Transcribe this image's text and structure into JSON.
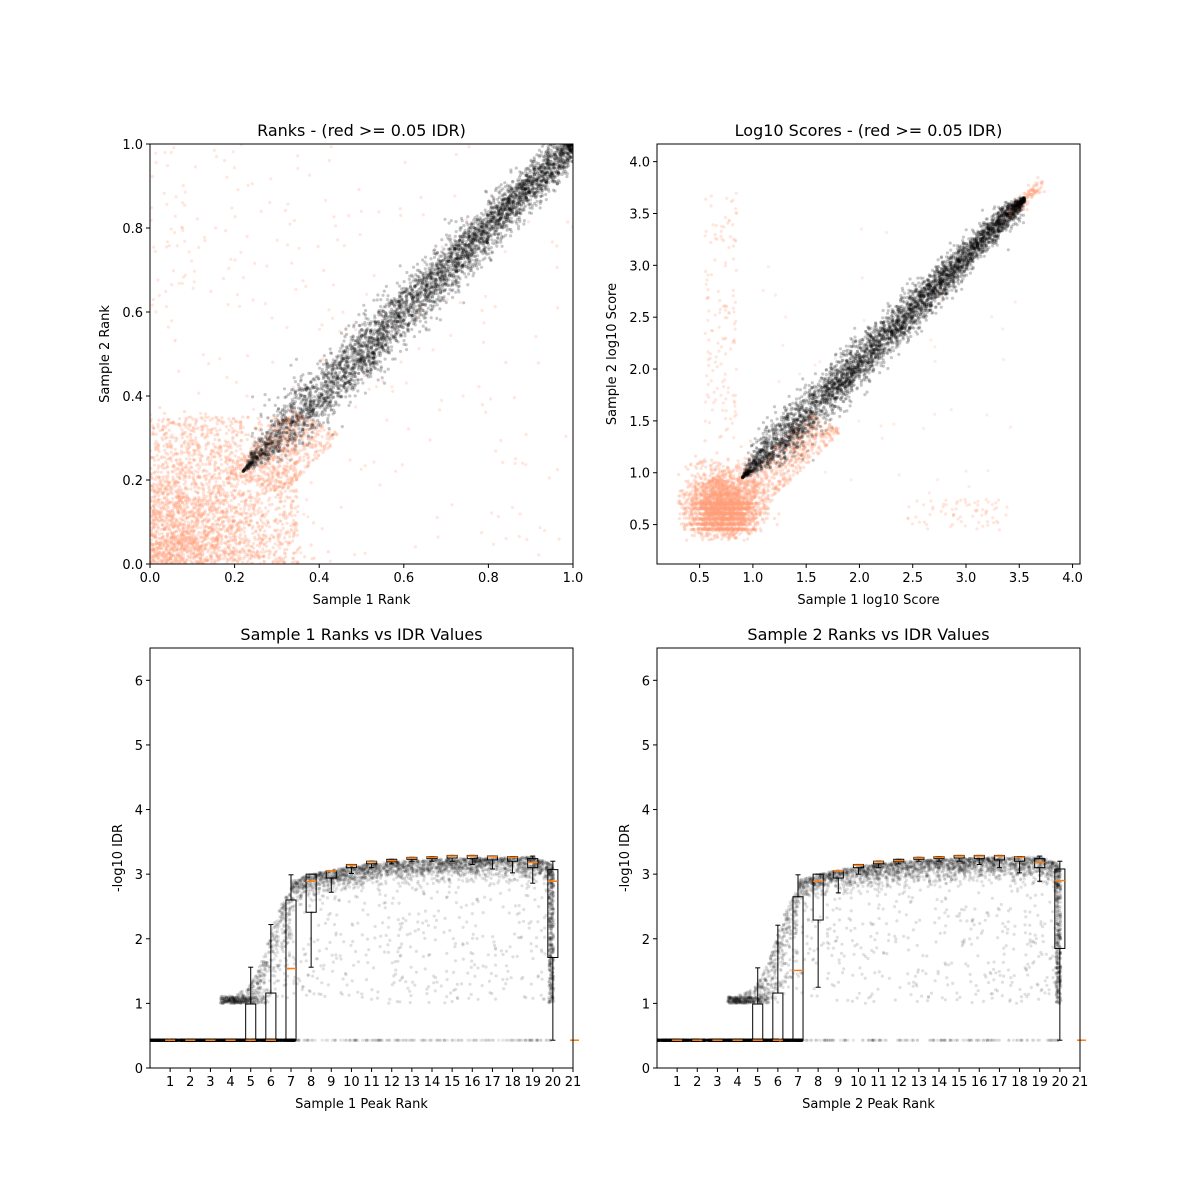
{
  "chart_data": [
    {
      "type": "scatter",
      "title": "Ranks - (red >= 0.05 IDR)",
      "xlabel": "Sample 1 Rank",
      "ylabel": "Sample 2 Rank",
      "xlim": [
        0,
        1
      ],
      "ylim": [
        0,
        1
      ],
      "xticks": [
        0.0,
        0.2,
        0.4,
        0.6,
        0.8,
        1.0
      ],
      "xtick_labels": [
        "0.0",
        "0.2",
        "0.4",
        "0.6",
        "0.8",
        "1.0"
      ],
      "yticks": [
        0.0,
        0.2,
        0.4,
        0.6,
        0.8,
        1.0
      ],
      "ytick_labels": [
        "0.0",
        "0.2",
        "0.4",
        "0.6",
        "0.8",
        "1.0"
      ],
      "grid": false,
      "colors": {
        "pass": "#000000",
        "fail": "#ffa07a"
      },
      "distribution": {
        "pass_diagonal_from": [
          0.22,
          0.22
        ],
        "pass_diagonal_to": [
          1.0,
          1.0
        ],
        "fail_cluster_range": [
          0.0,
          0.35
        ]
      }
    },
    {
      "type": "scatter",
      "title": "Log10 Scores - (red >= 0.05 IDR)",
      "xlabel": "Sample 1 log10 Score",
      "ylabel": "Sample 2 log10 Score",
      "xlim": [
        0.1,
        4.07
      ],
      "ylim": [
        0.12,
        4.17
      ],
      "xticks": [
        0.5,
        1.0,
        1.5,
        2.0,
        2.5,
        3.0,
        3.5,
        4.0
      ],
      "xtick_labels": [
        "0.5",
        "1.0",
        "1.5",
        "2.0",
        "2.5",
        "3.0",
        "3.5",
        "4.0"
      ],
      "yticks": [
        0.5,
        1.0,
        1.5,
        2.0,
        2.5,
        3.0,
        3.5,
        4.0
      ],
      "ytick_labels": [
        "0.5",
        "1.0",
        "1.5",
        "2.0",
        "2.5",
        "3.0",
        "3.5",
        "4.0"
      ],
      "grid": false,
      "colors": {
        "pass": "#000000",
        "fail": "#ffa07a"
      },
      "distribution": {
        "pass_diagonal_from": [
          0.9,
          0.95
        ],
        "pass_diagonal_to": [
          3.55,
          3.65
        ],
        "fail_cluster_center": [
          0.7,
          0.7
        ]
      }
    },
    {
      "type": "boxplot",
      "title": "Sample 1 Ranks vs IDR Values",
      "xlabel": "Sample 1 Peak Rank",
      "ylabel": "-log10 IDR",
      "xlim": [
        0,
        21
      ],
      "ylim": [
        0,
        6.5
      ],
      "xticks": [
        1,
        2,
        3,
        4,
        5,
        6,
        7,
        8,
        9,
        10,
        11,
        12,
        13,
        14,
        15,
        16,
        17,
        18,
        19,
        20,
        21
      ],
      "xtick_labels": [
        "1",
        "2",
        "3",
        "4",
        "5",
        "6",
        "7",
        "8",
        "9",
        "10",
        "11",
        "12",
        "13",
        "14",
        "15",
        "16",
        "17",
        "18",
        "19",
        "20",
        "21"
      ],
      "yticks": [
        0,
        1,
        2,
        3,
        4,
        5,
        6
      ],
      "ytick_labels": [
        "0",
        "1",
        "2",
        "3",
        "4",
        "5",
        "6"
      ],
      "grid": false,
      "colors": {
        "points": "#000000",
        "median": "#ff7f0e",
        "box": "#000000"
      },
      "boxes": [
        {
          "pos": 1,
          "low": 0.43,
          "q1": 0.43,
          "med": 0.43,
          "q3": 0.43,
          "high": 0.43
        },
        {
          "pos": 2,
          "low": 0.43,
          "q1": 0.43,
          "med": 0.43,
          "q3": 0.43,
          "high": 0.43
        },
        {
          "pos": 3,
          "low": 0.43,
          "q1": 0.43,
          "med": 0.43,
          "q3": 0.43,
          "high": 0.43
        },
        {
          "pos": 4,
          "low": 0.43,
          "q1": 0.43,
          "med": 0.43,
          "q3": 0.43,
          "high": 0.43
        },
        {
          "pos": 5,
          "low": 0.43,
          "q1": 0.43,
          "med": 0.43,
          "q3": 0.99,
          "high": 1.56
        },
        {
          "pos": 6,
          "low": 0.43,
          "q1": 0.43,
          "med": 0.43,
          "q3": 1.16,
          "high": 2.22
        },
        {
          "pos": 7,
          "low": 0.43,
          "q1": 0.43,
          "med": 1.54,
          "q3": 2.6,
          "high": 2.99
        },
        {
          "pos": 8,
          "low": 1.56,
          "q1": 2.41,
          "med": 2.89,
          "q3": 3.0,
          "high": 3.0
        },
        {
          "pos": 9,
          "low": 2.72,
          "q1": 2.94,
          "med": 3.05,
          "q3": 3.05,
          "high": 3.05
        },
        {
          "pos": 10,
          "low": 3.01,
          "q1": 3.1,
          "med": 3.14,
          "q3": 3.15,
          "high": 3.15
        },
        {
          "pos": 11,
          "low": 3.1,
          "q1": 3.16,
          "med": 3.19,
          "q3": 3.2,
          "high": 3.2
        },
        {
          "pos": 12,
          "low": 3.16,
          "q1": 3.19,
          "med": 3.21,
          "q3": 3.23,
          "high": 3.23
        },
        {
          "pos": 13,
          "low": 3.2,
          "q1": 3.23,
          "med": 3.25,
          "q3": 3.26,
          "high": 3.26
        },
        {
          "pos": 14,
          "low": 3.2,
          "q1": 3.24,
          "med": 3.26,
          "q3": 3.27,
          "high": 3.27
        },
        {
          "pos": 15,
          "low": 3.2,
          "q1": 3.25,
          "med": 3.28,
          "q3": 3.29,
          "high": 3.29
        },
        {
          "pos": 16,
          "low": 3.15,
          "q1": 3.24,
          "med": 3.28,
          "q3": 3.29,
          "high": 3.29
        },
        {
          "pos": 17,
          "low": 3.08,
          "q1": 3.22,
          "med": 3.27,
          "q3": 3.28,
          "high": 3.28
        },
        {
          "pos": 18,
          "low": 3.02,
          "q1": 3.2,
          "med": 3.26,
          "q3": 3.27,
          "high": 3.27
        },
        {
          "pos": 19,
          "low": 2.86,
          "q1": 3.1,
          "med": 3.18,
          "q3": 3.24,
          "high": 3.28
        },
        {
          "pos": 20,
          "low": 0.43,
          "q1": 1.71,
          "med": 2.89,
          "q3": 3.07,
          "high": 3.2
        },
        {
          "pos": 21,
          "low": 0.43,
          "q1": 0.43,
          "med": 0.43,
          "q3": 0.43,
          "high": 0.43
        }
      ]
    },
    {
      "type": "boxplot",
      "title": "Sample 2 Ranks vs IDR Values",
      "xlabel": "Sample 2 Peak Rank",
      "ylabel": "-log10 IDR",
      "xlim": [
        0,
        21
      ],
      "ylim": [
        0,
        6.5
      ],
      "xticks": [
        1,
        2,
        3,
        4,
        5,
        6,
        7,
        8,
        9,
        10,
        11,
        12,
        13,
        14,
        15,
        16,
        17,
        18,
        19,
        20,
        21
      ],
      "xtick_labels": [
        "1",
        "2",
        "3",
        "4",
        "5",
        "6",
        "7",
        "8",
        "9",
        "10",
        "11",
        "12",
        "13",
        "14",
        "15",
        "16",
        "17",
        "18",
        "19",
        "20",
        "21"
      ],
      "yticks": [
        0,
        1,
        2,
        3,
        4,
        5,
        6
      ],
      "ytick_labels": [
        "0",
        "1",
        "2",
        "3",
        "4",
        "5",
        "6"
      ],
      "grid": false,
      "colors": {
        "points": "#000000",
        "median": "#ff7f0e",
        "box": "#000000"
      },
      "boxes": [
        {
          "pos": 1,
          "low": 0.43,
          "q1": 0.43,
          "med": 0.43,
          "q3": 0.43,
          "high": 0.43
        },
        {
          "pos": 2,
          "low": 0.43,
          "q1": 0.43,
          "med": 0.43,
          "q3": 0.43,
          "high": 0.43
        },
        {
          "pos": 3,
          "low": 0.43,
          "q1": 0.43,
          "med": 0.43,
          "q3": 0.43,
          "high": 0.43
        },
        {
          "pos": 4,
          "low": 0.43,
          "q1": 0.43,
          "med": 0.43,
          "q3": 0.43,
          "high": 0.43
        },
        {
          "pos": 5,
          "low": 0.43,
          "q1": 0.43,
          "med": 0.43,
          "q3": 0.99,
          "high": 1.55
        },
        {
          "pos": 6,
          "low": 0.43,
          "q1": 0.43,
          "med": 0.43,
          "q3": 1.16,
          "high": 2.21
        },
        {
          "pos": 7,
          "low": 0.43,
          "q1": 0.43,
          "med": 1.51,
          "q3": 2.65,
          "high": 2.99
        },
        {
          "pos": 8,
          "low": 1.25,
          "q1": 2.29,
          "med": 2.89,
          "q3": 3.0,
          "high": 3.0
        },
        {
          "pos": 9,
          "low": 2.71,
          "q1": 2.94,
          "med": 3.05,
          "q3": 3.05,
          "high": 3.05
        },
        {
          "pos": 10,
          "low": 3.0,
          "q1": 3.1,
          "med": 3.14,
          "q3": 3.15,
          "high": 3.15
        },
        {
          "pos": 11,
          "low": 3.1,
          "q1": 3.16,
          "med": 3.19,
          "q3": 3.2,
          "high": 3.2
        },
        {
          "pos": 12,
          "low": 3.16,
          "q1": 3.19,
          "med": 3.21,
          "q3": 3.23,
          "high": 3.23
        },
        {
          "pos": 13,
          "low": 3.2,
          "q1": 3.23,
          "med": 3.25,
          "q3": 3.26,
          "high": 3.26
        },
        {
          "pos": 14,
          "low": 3.2,
          "q1": 3.24,
          "med": 3.26,
          "q3": 3.27,
          "high": 3.27
        },
        {
          "pos": 15,
          "low": 3.2,
          "q1": 3.25,
          "med": 3.28,
          "q3": 3.29,
          "high": 3.29
        },
        {
          "pos": 16,
          "low": 3.15,
          "q1": 3.24,
          "med": 3.28,
          "q3": 3.29,
          "high": 3.29
        },
        {
          "pos": 17,
          "low": 3.1,
          "q1": 3.22,
          "med": 3.28,
          "q3": 3.29,
          "high": 3.29
        },
        {
          "pos": 18,
          "low": 3.02,
          "q1": 3.2,
          "med": 3.26,
          "q3": 3.27,
          "high": 3.27
        },
        {
          "pos": 19,
          "low": 2.89,
          "q1": 3.1,
          "med": 3.18,
          "q3": 3.24,
          "high": 3.28
        },
        {
          "pos": 20,
          "low": 0.43,
          "q1": 1.85,
          "med": 2.9,
          "q3": 3.08,
          "high": 3.2
        },
        {
          "pos": 21,
          "low": 0.43,
          "q1": 0.43,
          "med": 0.43,
          "q3": 0.43,
          "high": 0.43
        }
      ]
    }
  ]
}
